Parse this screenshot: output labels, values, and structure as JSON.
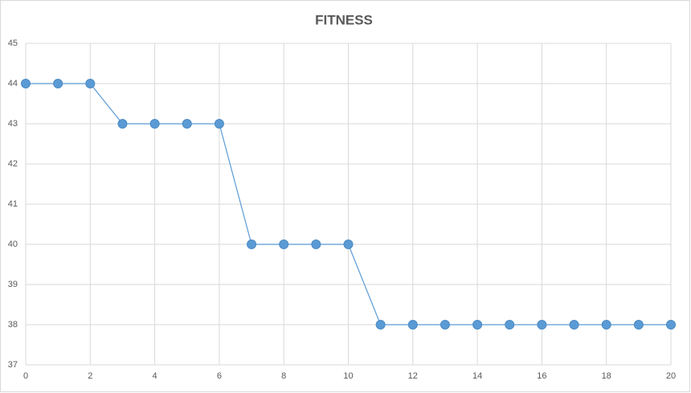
{
  "chart_data": {
    "type": "line",
    "title": "FITNESS",
    "x": [
      0,
      1,
      2,
      3,
      4,
      5,
      6,
      7,
      8,
      9,
      10,
      11,
      12,
      13,
      14,
      15,
      16,
      17,
      18,
      19,
      20
    ],
    "series": [
      {
        "name": "FITNESS",
        "color": "#5b9bd5",
        "values": [
          44,
          44,
          44,
          43,
          43,
          43,
          43,
          40,
          40,
          40,
          40,
          38,
          38,
          38,
          38,
          38,
          38,
          38,
          38,
          38,
          38
        ]
      }
    ],
    "xlim": [
      0,
      20
    ],
    "xticks": [
      0,
      2,
      4,
      6,
      8,
      10,
      12,
      14,
      16,
      18,
      20
    ],
    "ylim": [
      37,
      45
    ],
    "yticks": [
      37,
      38,
      39,
      40,
      41,
      42,
      43,
      44,
      45
    ],
    "grid": true
  }
}
